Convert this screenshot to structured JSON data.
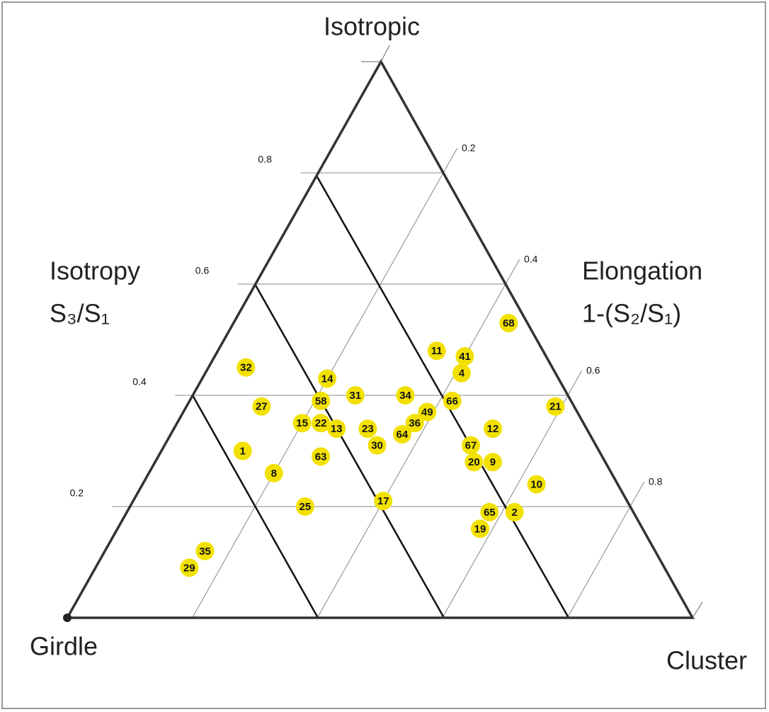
{
  "chart_data": {
    "type": "ternary",
    "vertex_labels": {
      "top": "Isotropic",
      "left": "Girdle",
      "right": "Cluster"
    },
    "left_axis_label": [
      "Isotropy",
      "S₃/S₁"
    ],
    "right_axis_label": [
      "Elongation",
      "1-(S₂/S₁)"
    ],
    "isotropy_ticks": [
      0.2,
      0.4,
      0.6,
      0.8
    ],
    "elongation_ticks": [
      0.2,
      0.4,
      0.6,
      0.8
    ],
    "point_color": "#f2e100",
    "points": [
      {
        "label": "68",
        "isotropy": 0.53,
        "elongation": 0.44
      },
      {
        "label": "11",
        "isotropy": 0.48,
        "elongation": 0.35
      },
      {
        "label": "41",
        "isotropy": 0.47,
        "elongation": 0.4
      },
      {
        "label": "4",
        "isotropy": 0.44,
        "elongation": 0.41
      },
      {
        "label": "32",
        "isotropy": 0.45,
        "elongation": 0.06
      },
      {
        "label": "14",
        "isotropy": 0.43,
        "elongation": 0.2
      },
      {
        "label": "58",
        "isotropy": 0.39,
        "elongation": 0.21
      },
      {
        "label": "31",
        "isotropy": 0.4,
        "elongation": 0.26
      },
      {
        "label": "34",
        "isotropy": 0.4,
        "elongation": 0.34
      },
      {
        "label": "66",
        "isotropy": 0.39,
        "elongation": 0.42
      },
      {
        "label": "21",
        "isotropy": 0.38,
        "elongation": 0.59
      },
      {
        "label": "27",
        "isotropy": 0.38,
        "elongation": 0.12
      },
      {
        "label": "49",
        "isotropy": 0.37,
        "elongation": 0.39
      },
      {
        "label": "36",
        "isotropy": 0.35,
        "elongation": 0.38
      },
      {
        "label": "15",
        "isotropy": 0.35,
        "elongation": 0.2
      },
      {
        "label": "22",
        "isotropy": 0.35,
        "elongation": 0.23
      },
      {
        "label": "13",
        "isotropy": 0.34,
        "elongation": 0.26
      },
      {
        "label": "23",
        "isotropy": 0.34,
        "elongation": 0.31
      },
      {
        "label": "64",
        "isotropy": 0.33,
        "elongation": 0.37
      },
      {
        "label": "12",
        "isotropy": 0.34,
        "elongation": 0.51
      },
      {
        "label": "30",
        "isotropy": 0.31,
        "elongation": 0.34
      },
      {
        "label": "67",
        "isotropy": 0.31,
        "elongation": 0.49
      },
      {
        "label": "1",
        "isotropy": 0.3,
        "elongation": 0.13
      },
      {
        "label": "63",
        "isotropy": 0.29,
        "elongation": 0.26
      },
      {
        "label": "20",
        "isotropy": 0.28,
        "elongation": 0.51
      },
      {
        "label": "9",
        "isotropy": 0.28,
        "elongation": 0.54
      },
      {
        "label": "8",
        "isotropy": 0.26,
        "elongation": 0.2
      },
      {
        "label": "10",
        "isotropy": 0.24,
        "elongation": 0.63
      },
      {
        "label": "25",
        "isotropy": 0.2,
        "elongation": 0.28
      },
      {
        "label": "17",
        "isotropy": 0.21,
        "elongation": 0.4
      },
      {
        "label": "65",
        "isotropy": 0.19,
        "elongation": 0.58
      },
      {
        "label": "2",
        "isotropy": 0.19,
        "elongation": 0.62
      },
      {
        "label": "19",
        "isotropy": 0.16,
        "elongation": 0.58
      },
      {
        "label": "35",
        "isotropy": 0.12,
        "elongation": 0.16
      },
      {
        "label": "29",
        "isotropy": 0.09,
        "elongation": 0.15
      }
    ]
  }
}
